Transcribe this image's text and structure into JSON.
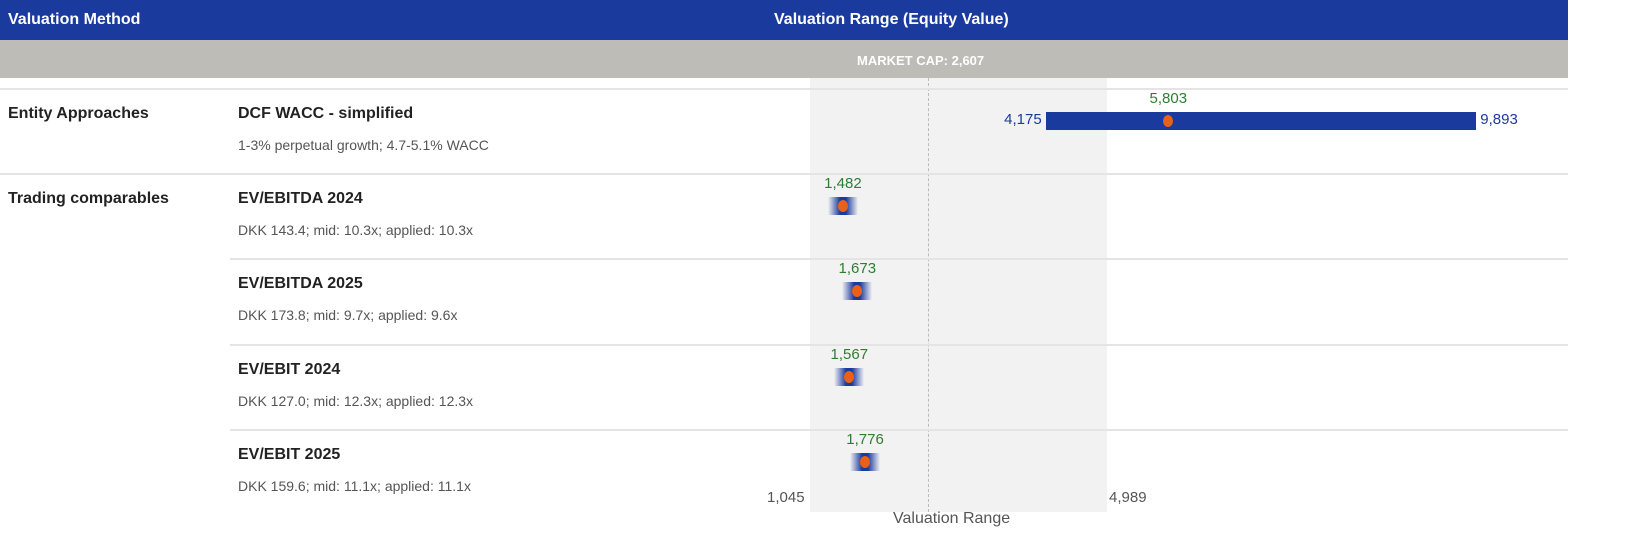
{
  "header": {
    "method": "Valuation Method",
    "range": "Valuation Range (Equity Value)"
  },
  "market_cap_label": "MARKET CAP: 2,607",
  "chart_data": {
    "type": "bar",
    "title": "Valuation Range (Equity Value)",
    "xlabel": "Valuation Range",
    "xlim": [
      1045,
      4989
    ],
    "tick_labels": [
      "1,045",
      "4,989"
    ],
    "market_cap": 2607,
    "rows": [
      {
        "group": "Entity Approaches",
        "name": "DCF WACC - simplified",
        "desc": "1-3% perpetual growth; 4.7-5.1% WACC",
        "low": 4175,
        "mid": 5803,
        "high": 9893,
        "low_label": "4,175",
        "mid_label": "5,803",
        "high_label": "9,893"
      },
      {
        "group": "Trading comparables",
        "name": "EV/EBITDA 2024",
        "desc": "DKK 143.4; mid: 10.3x; applied: 10.3x",
        "mid": 1482,
        "mid_label": "1,482"
      },
      {
        "group": "",
        "name": "EV/EBITDA 2025",
        "desc": "DKK 173.8; mid: 9.7x; applied: 9.6x",
        "mid": 1673,
        "mid_label": "1,673"
      },
      {
        "group": "",
        "name": "EV/EBIT 2024",
        "desc": "DKK 127.0; mid: 12.3x; applied: 12.3x",
        "mid": 1567,
        "mid_label": "1,567"
      },
      {
        "group": "",
        "name": "EV/EBIT 2025",
        "desc": "DKK 159.6; mid: 11.1x; applied: 11.1x",
        "mid": 1776,
        "mid_label": "1,776"
      }
    ]
  }
}
